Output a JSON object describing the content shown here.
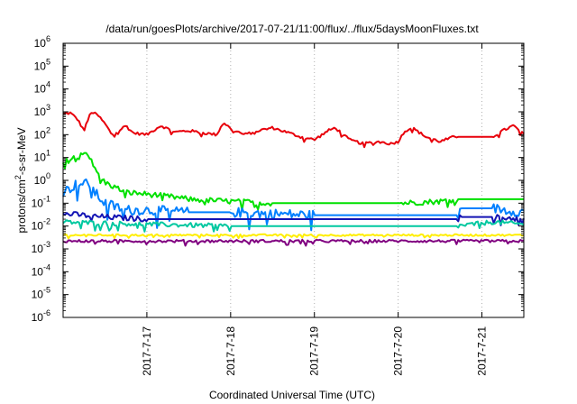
{
  "chart_data": {
    "type": "line",
    "title": "/data/run/goesPlots/archive/2017-07-21/11:00/flux/../flux/5daysMoonFluxes.txt",
    "xlabel": "Coordinated Universal Time (UTC)",
    "ylabel": "protons/cm2-s-sr-MeV",
    "ylabel_parts": {
      "before": "protons/cm",
      "sup": "2",
      "after": "-s-sr-MeV"
    },
    "yscale": "log",
    "ylim": [
      1e-06,
      1000000.0
    ],
    "xlim": [
      "2017-07-16 00:00",
      "2017-07-21 12:00"
    ],
    "grid": true,
    "xticks": [
      {
        "x": "2017-07-17",
        "label": "2017-7-17"
      },
      {
        "x": "2017-07-18",
        "label": "2017-7-18"
      },
      {
        "x": "2017-07-19",
        "label": "2017-7-19"
      },
      {
        "x": "2017-07-20",
        "label": "2017-7-20"
      },
      {
        "x": "2017-07-21",
        "label": "2017-7-21"
      }
    ],
    "yticks": [
      {
        "exp": -6,
        "base": "10",
        "sup": "-6"
      },
      {
        "exp": -5,
        "base": "10",
        "sup": "-5"
      },
      {
        "exp": -4,
        "base": "10",
        "sup": "-4"
      },
      {
        "exp": -3,
        "base": "10",
        "sup": "-3"
      },
      {
        "exp": -2,
        "base": "10",
        "sup": "-2"
      },
      {
        "exp": -1,
        "base": "10",
        "sup": "-1"
      },
      {
        "exp": 0,
        "base": "10",
        "sup": "0"
      },
      {
        "exp": 1,
        "base": "10",
        "sup": "1"
      },
      {
        "exp": 2,
        "base": "10",
        "sup": "2"
      },
      {
        "exp": 3,
        "base": "10",
        "sup": "3"
      },
      {
        "exp": 4,
        "base": "10",
        "sup": "4"
      },
      {
        "exp": 5,
        "base": "10",
        "sup": "5"
      },
      {
        "exp": 6,
        "base": "10",
        "sup": "6"
      }
    ],
    "series": [
      {
        "color": "#e8000b",
        "jitter": 0.06,
        "points": [
          [
            "2017-07-16 00:00",
            800
          ],
          [
            "2017-07-16 02:00",
            900
          ],
          [
            "2017-07-16 04:00",
            500
          ],
          [
            "2017-07-16 06:00",
            150
          ],
          [
            "2017-07-16 08:00",
            1000
          ],
          [
            "2017-07-16 10:00",
            700
          ],
          [
            "2017-07-16 12:00",
            300
          ],
          [
            "2017-07-16 14:00",
            100
          ],
          [
            "2017-07-16 16:00",
            150
          ],
          [
            "2017-07-16 18:00",
            250
          ],
          [
            "2017-07-16 20:00",
            120
          ],
          [
            "2017-07-17 00:00",
            100
          ],
          [
            "2017-07-17 04:00",
            250
          ],
          [
            "2017-07-17 08:00",
            130
          ],
          [
            "2017-07-17 12:00",
            150
          ],
          [
            "2017-07-17 16:00",
            120
          ],
          [
            "2017-07-17 20:00",
            100
          ],
          [
            "2017-07-17 22:00",
            350
          ],
          [
            "2017-07-18 00:00",
            180
          ],
          [
            "2017-07-18 04:00",
            100
          ],
          [
            "2017-07-18 08:00",
            150
          ],
          [
            "2017-07-18 12:00",
            200
          ],
          [
            "2017-07-18 16:00",
            130
          ],
          [
            "2017-07-18 20:00",
            80
          ],
          [
            "2017-07-19 00:00",
            60
          ],
          [
            "2017-07-19 04:00",
            150
          ],
          [
            "2017-07-19 06:00",
            200
          ],
          [
            "2017-07-19 10:00",
            60
          ],
          [
            "2017-07-19 14:00",
            40
          ],
          [
            "2017-07-19 18:00",
            50
          ],
          [
            "2017-07-19 22:00",
            40
          ],
          [
            "2017-07-20 00:00",
            50
          ],
          [
            "2017-07-20 02:00",
            150
          ],
          [
            "2017-07-20 04:00",
            200
          ],
          [
            "2017-07-20 08:00",
            80
          ],
          [
            "2017-07-20 12:00",
            50
          ],
          [
            "2017-07-20 16:00",
            80
          ],
          [
            "2017-07-20 17:00",
            80
          ],
          [
            "2017-07-21 03:00",
            80
          ],
          [
            "2017-07-21 06:00",
            150
          ],
          [
            "2017-07-21 09:00",
            250
          ],
          [
            "2017-07-21 12:00",
            100
          ]
        ]
      },
      {
        "color": "#00e000",
        "jitter": 0.12,
        "points": [
          [
            "2017-07-16 00:00",
            6
          ],
          [
            "2017-07-16 02:00",
            8
          ],
          [
            "2017-07-16 04:00",
            15
          ],
          [
            "2017-07-16 06:00",
            18
          ],
          [
            "2017-07-16 08:00",
            10
          ],
          [
            "2017-07-16 09:00",
            3
          ],
          [
            "2017-07-16 12:00",
            0.8
          ],
          [
            "2017-07-16 18:00",
            0.3
          ],
          [
            "2017-07-17 00:00",
            0.25
          ],
          [
            "2017-07-17 06:00",
            0.2
          ],
          [
            "2017-07-17 12:00",
            0.15
          ],
          [
            "2017-07-18 00:00",
            0.12
          ],
          [
            "2017-07-18 12:00",
            0.1
          ],
          [
            "2017-07-19 00:00",
            0.1
          ],
          [
            "2017-07-19 12:00",
            0.1
          ],
          [
            "2017-07-20 00:00",
            0.1
          ],
          [
            "2017-07-20 12:00",
            0.12
          ],
          [
            "2017-07-20 17:00",
            0.15
          ],
          [
            "2017-07-21 03:00",
            0.15
          ],
          [
            "2017-07-21 12:00",
            0.15
          ]
        ]
      },
      {
        "color": "#0080ff",
        "jitter": 0.22,
        "points": [
          [
            "2017-07-16 00:00",
            0.3
          ],
          [
            "2017-07-16 04:00",
            0.7
          ],
          [
            "2017-07-16 08:00",
            0.7
          ],
          [
            "2017-07-16 09:00",
            0.3
          ],
          [
            "2017-07-16 12:00",
            0.1
          ],
          [
            "2017-07-16 18:00",
            0.05
          ],
          [
            "2017-07-17 00:00",
            0.05
          ],
          [
            "2017-07-17 12:00",
            0.04
          ],
          [
            "2017-07-18 00:00",
            0.04
          ],
          [
            "2017-07-19 00:00",
            0.03
          ],
          [
            "2017-07-20 00:00",
            0.03
          ],
          [
            "2017-07-20 17:00",
            0.03
          ],
          [
            "2017-07-20 18:00",
            0.06
          ],
          [
            "2017-07-21 03:00",
            0.06
          ],
          [
            "2017-07-21 12:00",
            0.04
          ]
        ]
      },
      {
        "color": "#1414b4",
        "jitter": 0.12,
        "points": [
          [
            "2017-07-16 00:00",
            0.035
          ],
          [
            "2017-07-16 12:00",
            0.025
          ],
          [
            "2017-07-17 00:00",
            0.02
          ],
          [
            "2017-07-18 00:00",
            0.02
          ],
          [
            "2017-07-19 00:00",
            0.02
          ],
          [
            "2017-07-20 00:00",
            0.02
          ],
          [
            "2017-07-20 17:00",
            0.02
          ],
          [
            "2017-07-20 18:00",
            0.025
          ],
          [
            "2017-07-21 03:00",
            0.025
          ],
          [
            "2017-07-21 12:00",
            0.02
          ]
        ]
      },
      {
        "color": "#00c8a0",
        "jitter": 0.1,
        "points": [
          [
            "2017-07-16 00:00",
            0.015
          ],
          [
            "2017-07-17 00:00",
            0.012
          ],
          [
            "2017-07-18 00:00",
            0.01
          ],
          [
            "2017-07-19 00:00",
            0.01
          ],
          [
            "2017-07-20 00:00",
            0.01
          ],
          [
            "2017-07-20 17:00",
            0.01
          ],
          [
            "2017-07-21 03:00",
            0.015
          ],
          [
            "2017-07-21 12:00",
            0.012
          ]
        ]
      },
      {
        "color": "#ffee00",
        "jitter": 0.04,
        "points": [
          [
            "2017-07-16 00:00",
            0.004
          ],
          [
            "2017-07-21 12:00",
            0.004
          ]
        ]
      },
      {
        "color": "#800080",
        "jitter": 0.06,
        "points": [
          [
            "2017-07-16 00:00",
            0.0022
          ],
          [
            "2017-07-21 12:00",
            0.0022
          ]
        ]
      }
    ]
  }
}
